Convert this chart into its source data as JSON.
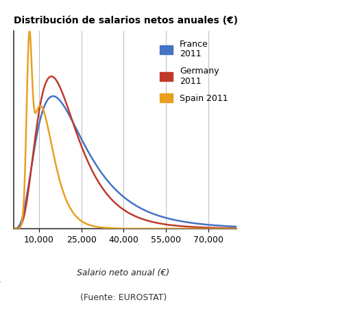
{
  "title": "Distribución de salarios netos anuales (€)",
  "xlabel": "Salario neto anual (€)",
  "source": "(Fuente: EUROSTAT)",
  "legend": [
    "France\n2011",
    "Germany\n2011",
    "Spain 2011"
  ],
  "colors": {
    "france": "#4472C4",
    "germany": "#C0392B",
    "spain": "#E8A020"
  },
  "xlim": [
    1000,
    80000
  ],
  "ylim_max": 1.0,
  "xticks": [
    10000,
    25000,
    40000,
    55000,
    70000
  ],
  "xtick_labels": [
    "10,000",
    "25,000",
    "40,000",
    "55,000",
    "70,000"
  ],
  "vgrid_x": [
    10000,
    25000,
    40000,
    55000,
    70000
  ],
  "background_color": "#ffffff",
  "plot_bg_color": "#ffffff"
}
